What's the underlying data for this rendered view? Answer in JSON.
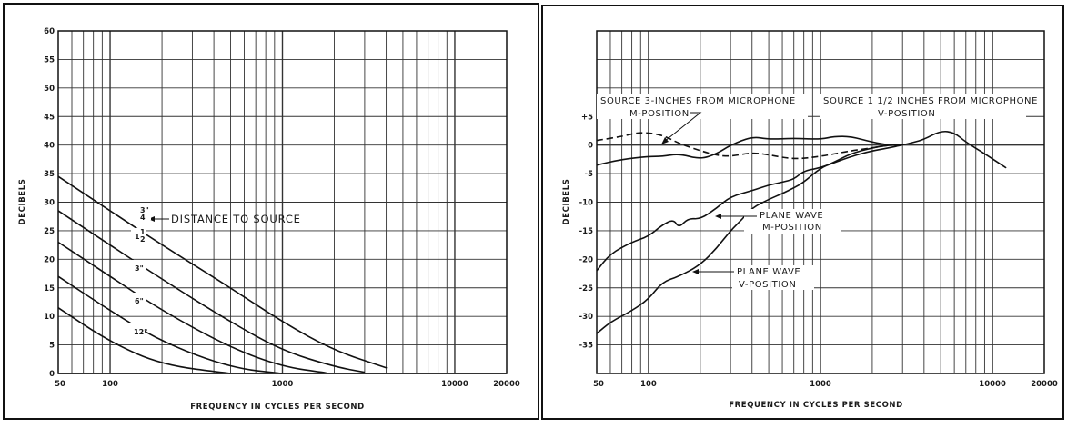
{
  "chart_data": [
    {
      "type": "line",
      "title": "",
      "xlabel": "FREQUENCY IN CYCLES PER SECOND",
      "ylabel": "DECIBELS",
      "x_scale": "log",
      "xlim": [
        50,
        20000
      ],
      "ylim": [
        0,
        60
      ],
      "x_tick_labels": [
        "50",
        "100",
        "1000",
        "10000",
        "20000"
      ],
      "y_tick_labels": [
        "0",
        "5",
        "10",
        "15",
        "20",
        "25",
        "30",
        "35",
        "40",
        "45",
        "50",
        "55",
        "60"
      ],
      "grid": true,
      "annotation": "DISTANCE TO SOURCE",
      "series": [
        {
          "name": "3/4\"",
          "label_num": "3",
          "label_den": "4",
          "x": [
            50,
            100,
            200,
            500,
            1000,
            2000,
            4000
          ],
          "y": [
            34.5,
            28.5,
            22.5,
            15.0,
            9.0,
            4.0,
            1.0
          ]
        },
        {
          "name": "1 1/2\"",
          "label_num": "1",
          "label_den": "2",
          "label_whole": "1",
          "x": [
            50,
            100,
            200,
            500,
            1000,
            2000,
            3000
          ],
          "y": [
            28.5,
            22.5,
            16.5,
            9.0,
            4.0,
            1.2,
            0.2
          ]
        },
        {
          "name": "3\"",
          "label_text": "3\"",
          "x": [
            50,
            100,
            200,
            500,
            1000,
            1800
          ],
          "y": [
            23.0,
            17.0,
            11.0,
            4.5,
            1.2,
            0.1
          ]
        },
        {
          "name": "6\"",
          "label_text": "6\"",
          "x": [
            50,
            100,
            200,
            500,
            1000
          ],
          "y": [
            17.0,
            11.0,
            5.5,
            1.0,
            0.0
          ]
        },
        {
          "name": "12\"",
          "label_text": "12\"",
          "x": [
            50,
            100,
            200,
            500
          ],
          "y": [
            11.5,
            5.5,
            1.5,
            0.0
          ]
        }
      ]
    },
    {
      "type": "line",
      "title": "",
      "xlabel": "FREQUENCY IN CYCLES PER SECOND",
      "ylabel": "DECIBELS",
      "x_scale": "log",
      "xlim": [
        50,
        20000
      ],
      "ylim": [
        -40,
        20
      ],
      "x_tick_labels": [
        "50",
        "100",
        "1000",
        "10000",
        "20000"
      ],
      "y_tick_labels": [
        "+5",
        "0",
        "-5",
        "-10",
        "-15",
        "-20",
        "-25",
        "-30",
        "-35"
      ],
      "grid": true,
      "annotations": [
        {
          "lines": [
            "SOURCE 3-INCHES FROM MICROPHONE",
            "M-POSITION"
          ]
        },
        {
          "lines": [
            "SOURCE 1 1/2 INCHES FROM MICROPHONE",
            "V-POSITION"
          ]
        },
        {
          "lines": [
            "PLANE WAVE",
            "M-POSITION"
          ]
        },
        {
          "lines": [
            "PLANE WAVE",
            "V-POSITION"
          ]
        }
      ],
      "series": [
        {
          "name": "SOURCE 3-INCHES FROM MICROPHONE M-POSITION",
          "style": "dashed",
          "x": [
            50,
            70,
            90,
            120,
            150,
            200,
            250,
            300,
            400,
            500,
            700,
            1000,
            1500,
            2000,
            2500,
            3000
          ],
          "y": [
            0.8,
            1.5,
            2.3,
            1.8,
            0.3,
            -1.0,
            -1.8,
            -2.0,
            -1.3,
            -1.7,
            -2.5,
            -2.0,
            -1.0,
            -0.5,
            0.0,
            0.0
          ]
        },
        {
          "name": "SOURCE 1 1/2 INCHES FROM MICROPHONE V-POSITION",
          "style": "solid",
          "x": [
            50,
            70,
            100,
            120,
            150,
            200,
            250,
            300,
            400,
            500,
            700,
            1000,
            1200,
            1500,
            2000,
            2500,
            3000,
            3500,
            4000,
            5000,
            6000,
            7000,
            9000,
            12000
          ],
          "y": [
            -3.5,
            -2.5,
            -2.0,
            -2.0,
            -1.5,
            -2.5,
            -1.5,
            0.0,
            1.5,
            1.0,
            1.2,
            1.0,
            1.5,
            1.5,
            0.5,
            0.0,
            0.0,
            0.5,
            1.0,
            2.5,
            2.2,
            0.5,
            -1.5,
            -4.0
          ]
        },
        {
          "name": "PLANE WAVE M-POSITION",
          "style": "solid",
          "x": [
            50,
            60,
            80,
            100,
            120,
            140,
            150,
            170,
            200,
            250,
            300,
            400,
            500,
            600,
            700,
            800,
            1000,
            1500,
            2000,
            2500,
            3000
          ],
          "y": [
            -22.0,
            -19.0,
            -17.0,
            -16.0,
            -14.0,
            -13.0,
            -14.5,
            -12.8,
            -13.0,
            -11.0,
            -9.0,
            -8.0,
            -7.0,
            -6.5,
            -6.0,
            -4.5,
            -4.0,
            -2.0,
            -1.0,
            -0.5,
            0.0
          ]
        },
        {
          "name": "PLANE WAVE V-POSITION",
          "style": "solid",
          "x": [
            50,
            60,
            80,
            100,
            120,
            150,
            200,
            250,
            300,
            350,
            400,
            500,
            600,
            700,
            800,
            1000,
            1200,
            1500,
            2000,
            2500,
            3000
          ],
          "y": [
            -33.0,
            -31.0,
            -29.0,
            -27.0,
            -24.0,
            -23.0,
            -21.0,
            -18.0,
            -15.0,
            -13.0,
            -11.0,
            -9.5,
            -8.5,
            -7.5,
            -6.5,
            -4.0,
            -3.0,
            -1.5,
            -0.5,
            0.0,
            0.0
          ]
        }
      ]
    }
  ]
}
